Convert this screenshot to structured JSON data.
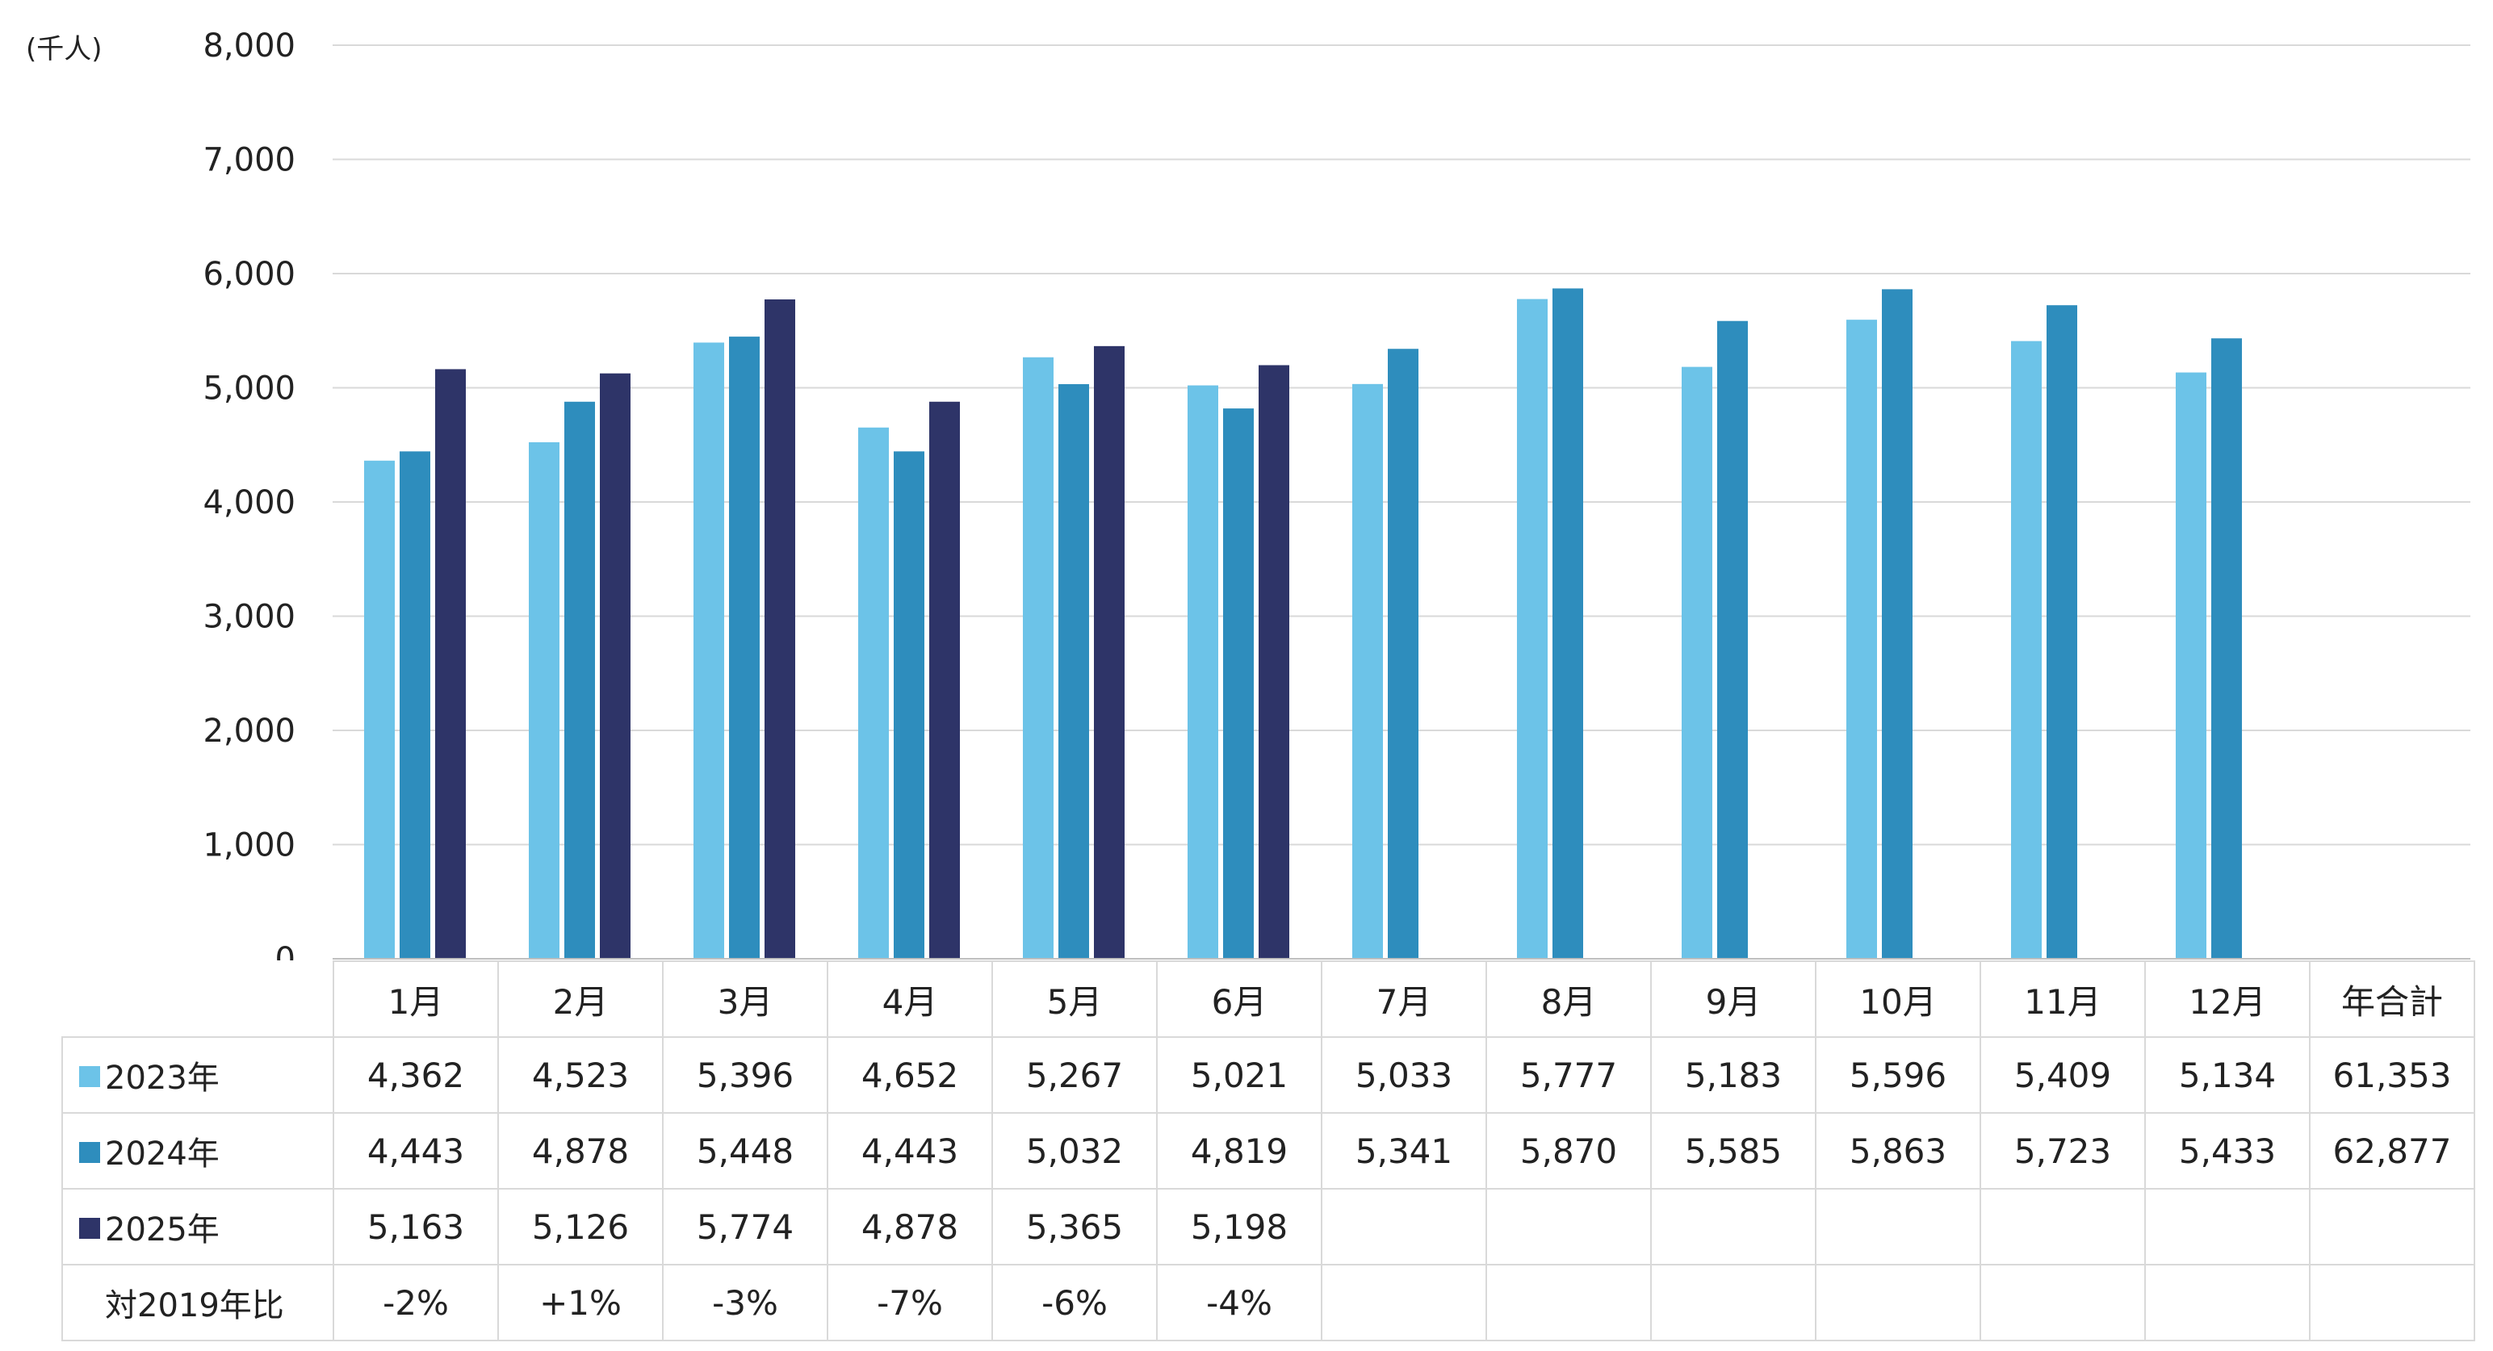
{
  "colors": {
    "series_2023": "#6cc3e8",
    "series_2024": "#2e8dbd",
    "series_2025": "#2e3468",
    "grid": "#d9d9d9"
  },
  "unit_label": "(千人)",
  "chart_data": {
    "type": "bar",
    "categories": [
      "1月",
      "2月",
      "3月",
      "4月",
      "5月",
      "6月",
      "7月",
      "8月",
      "9月",
      "10月",
      "11月",
      "12月"
    ],
    "series": [
      {
        "name": "2023年",
        "values": [
          4362,
          4523,
          5396,
          4652,
          5267,
          5021,
          5033,
          5777,
          5183,
          5596,
          5409,
          5134
        ]
      },
      {
        "name": "2024年",
        "values": [
          4443,
          4878,
          5448,
          4443,
          5032,
          4819,
          5341,
          5870,
          5585,
          5863,
          5723,
          5433
        ]
      },
      {
        "name": "2025年",
        "values": [
          5163,
          5126,
          5774,
          4878,
          5365,
          5198,
          null,
          null,
          null,
          null,
          null,
          null
        ]
      }
    ],
    "ylim": [
      0,
      8000
    ],
    "yticks": [
      "0",
      "1,000",
      "2,000",
      "3,000",
      "4,000",
      "5,000",
      "6,000",
      "7,000",
      "8,000"
    ],
    "ylabel": "(千人)",
    "grid": true
  },
  "table": {
    "header": [
      "1月",
      "2月",
      "3月",
      "4月",
      "5月",
      "6月",
      "7月",
      "8月",
      "9月",
      "10月",
      "11月",
      "12月",
      "年合計"
    ],
    "rows": [
      {
        "label": "2023年",
        "cells": [
          "4,362",
          "4,523",
          "5,396",
          "4,652",
          "5,267",
          "5,021",
          "5,033",
          "5,777",
          "5,183",
          "5,596",
          "5,409",
          "5,134",
          "61,353"
        ]
      },
      {
        "label": "2024年",
        "cells": [
          "4,443",
          "4,878",
          "5,448",
          "4,443",
          "5,032",
          "4,819",
          "5,341",
          "5,870",
          "5,585",
          "5,863",
          "5,723",
          "5,433",
          "62,877"
        ]
      },
      {
        "label": "2025年",
        "cells": [
          "5,163",
          "5,126",
          "5,774",
          "4,878",
          "5,365",
          "5,198",
          "",
          "",
          "",
          "",
          "",
          "",
          ""
        ]
      },
      {
        "label": "対2019年比",
        "cells": [
          "-2%",
          "+1%",
          "-3%",
          "-7%",
          "-6%",
          "-4%",
          "",
          "",
          "",
          "",
          "",
          "",
          ""
        ]
      }
    ]
  }
}
